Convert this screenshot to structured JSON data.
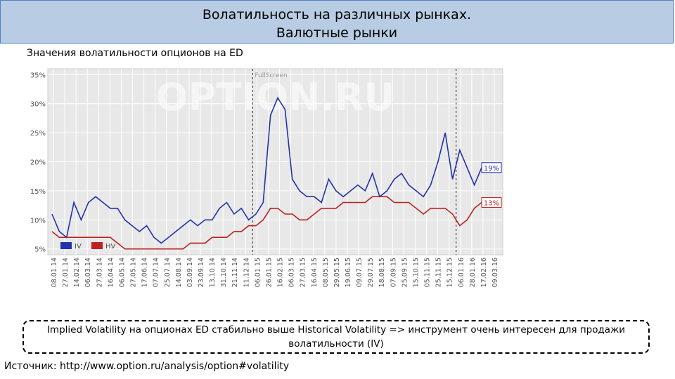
{
  "header": {
    "title_line1": "Волатильность на различных рынках.",
    "title_line2": "Валютные рынки"
  },
  "subtitle": "Значения волатильности опционов на ED",
  "note": "Implied Volatility на опционах ED стабильно выше Historical Volatility => инструмент очень интересен для продажи волатильности (IV)",
  "source": "Источник: http://www.option.ru/analysis/option#volatility",
  "colors": {
    "title_bg": "#b8cce4",
    "iv": "#2233aa",
    "hv": "#bb2222",
    "plot_bg": "#e8e8e8"
  },
  "chart_data": {
    "type": "line",
    "watermark": "OPTION.RU",
    "fullscreen_label": "FullScreen",
    "y_ticks": [
      "35%",
      "30%",
      "25%",
      "20%",
      "15%",
      "10%",
      "5%"
    ],
    "ylim": [
      4,
      36
    ],
    "x_ticks": [
      "08.01.14",
      "27.01.14",
      "14.02.14",
      "06.03.14",
      "27.03.14",
      "16.04.14",
      "06.05.14",
      "27.05.14",
      "17.06.14",
      "07.07.14",
      "25.07.14",
      "14.08.14",
      "03.09.14",
      "23.09.14",
      "13.10.14",
      "31.10.14",
      "21.11.14",
      "11.12.14",
      "06.01.15",
      "26.01.15",
      "16.02.15",
      "06.03.15",
      "27.03.15",
      "16.04.15",
      "08.05.15",
      "29.05.15",
      "19.06.15",
      "09.07.15",
      "29.07.15",
      "18.08.15",
      "07.09.15",
      "25.09.15",
      "15.10.15",
      "05.11.15",
      "25.11.15",
      "15.12.15",
      "06.01.16",
      "28.01.16",
      "17.02.16",
      "09.03.16"
    ],
    "legend": [
      "IV",
      "HV"
    ],
    "end_labels": {
      "iv": "19%",
      "hv": "13%"
    },
    "event_lines_at_tick": [
      18,
      36
    ],
    "series": [
      {
        "name": "IV",
        "values": [
          11,
          8,
          7,
          13,
          10,
          13,
          14,
          13,
          12,
          12,
          10,
          9,
          8,
          9,
          7,
          6,
          7,
          8,
          9,
          10,
          9,
          10,
          10,
          12,
          13,
          11,
          12,
          10,
          11,
          13,
          28,
          31,
          29,
          17,
          15,
          14,
          14,
          13,
          17,
          15,
          14,
          15,
          16,
          15,
          18,
          14,
          15,
          17,
          18,
          16,
          15,
          14,
          16,
          20,
          25,
          17,
          22,
          19,
          16,
          19
        ]
      },
      {
        "name": "HV",
        "values": [
          8,
          7,
          7,
          7,
          7,
          7,
          7,
          7,
          7,
          6,
          5,
          5,
          5,
          5,
          5,
          5,
          5,
          5,
          5,
          6,
          6,
          6,
          7,
          7,
          7,
          8,
          8,
          9,
          9,
          10,
          12,
          12,
          11,
          11,
          10,
          10,
          11,
          12,
          12,
          12,
          13,
          13,
          13,
          13,
          14,
          14,
          14,
          13,
          13,
          13,
          12,
          11,
          12,
          12,
          12,
          11,
          9,
          10,
          12,
          13
        ]
      }
    ]
  }
}
